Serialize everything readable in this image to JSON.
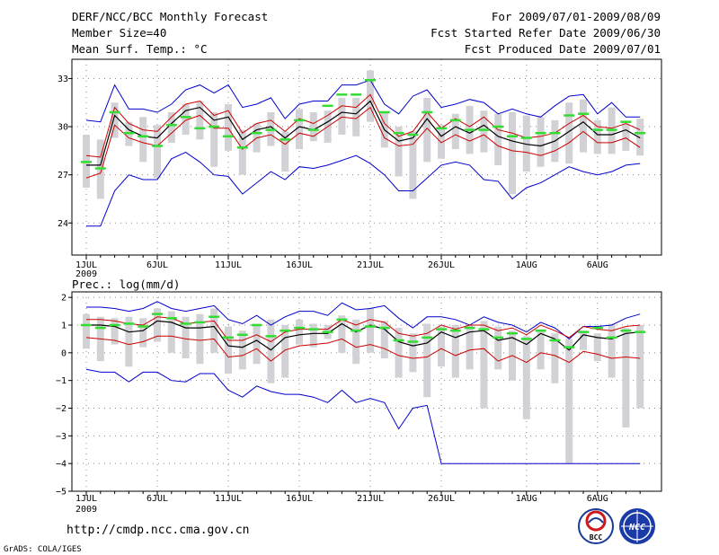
{
  "header": {
    "left": [
      "DERF/NCC/BCC Monthly Forecast",
      "Member Size=40",
      "Mean Surf. Temp.: °C"
    ],
    "right": [
      "For 2009/07/01-2009/08/09",
      "Fcst Started Refer Date 2009/06/30",
      "Fcst Produced Date 2009/07/01"
    ]
  },
  "footer": {
    "url": "http://cmdp.ncc.cma.gov.cn",
    "credit": "GrADS: COLA/IGES",
    "logo_bcc_text": "BCC",
    "logo_ncc_text": "NCC"
  },
  "colors": {
    "box": "#d2d2d6",
    "median": "#33dd33",
    "mean": "#000000",
    "inner": "#cc0000",
    "outer": "#0000cc",
    "grid": "#888888"
  },
  "chart_data": [
    {
      "type": "boxplot-ensemble",
      "title": "Mean Surf. Temp.: °C",
      "days": 40,
      "ylim": [
        22,
        34.2
      ],
      "yticks": [
        24,
        27,
        30,
        33
      ],
      "ytick_labels": [
        "24",
        "27",
        "30",
        "33"
      ],
      "xtick_days": [
        1,
        6,
        11,
        16,
        21,
        26,
        32,
        37
      ],
      "xtick_labels": [
        "1JUL",
        "6JUL",
        "11JUL",
        "16JUL",
        "21JUL",
        "26JUL",
        "1AUG",
        "6AUG"
      ],
      "year_label": "2009",
      "mean": [
        27.6,
        27.6,
        30.7,
        29.8,
        29.4,
        29.3,
        30.2,
        31.0,
        31.2,
        30.4,
        30.6,
        29.2,
        29.8,
        30.0,
        29.3,
        30.0,
        29.8,
        30.3,
        30.9,
        30.8,
        31.6,
        29.8,
        29.1,
        29.3,
        30.5,
        29.4,
        30.0,
        29.6,
        30.1,
        29.4,
        29.1,
        28.9,
        28.8,
        29.1,
        29.7,
        30.3,
        29.5,
        29.5,
        29.8,
        29.3
      ],
      "q_low": [
        26.8,
        27.1,
        30.1,
        29.3,
        29.0,
        28.8,
        29.6,
        30.4,
        30.7,
        29.9,
        29.9,
        28.6,
        29.3,
        29.5,
        28.9,
        29.6,
        29.4,
        30.0,
        30.6,
        30.5,
        31.2,
        29.3,
        28.8,
        28.9,
        29.9,
        29.0,
        29.5,
        29.1,
        29.5,
        28.8,
        28.5,
        28.4,
        28.2,
        28.5,
        29.0,
        29.7,
        29.0,
        29.0,
        29.3,
        28.7
      ],
      "q_high": [
        28.2,
        28.1,
        31.2,
        30.2,
        29.8,
        29.7,
        30.6,
        31.4,
        31.6,
        30.7,
        31.0,
        29.6,
        30.2,
        30.4,
        29.7,
        30.5,
        30.2,
        30.7,
        31.3,
        31.2,
        32.0,
        30.2,
        29.4,
        29.7,
        30.9,
        29.9,
        30.5,
        30.0,
        30.6,
        29.8,
        29.6,
        29.3,
        29.4,
        29.6,
        30.2,
        30.7,
        30.0,
        29.9,
        30.2,
        29.8
      ],
      "min": [
        23.8,
        23.8,
        26.0,
        27.0,
        26.7,
        26.7,
        28.0,
        28.4,
        27.8,
        27.0,
        26.9,
        25.8,
        26.5,
        27.2,
        26.7,
        27.5,
        27.4,
        27.6,
        27.9,
        28.2,
        27.7,
        27.0,
        26.0,
        26.0,
        26.8,
        27.6,
        27.8,
        27.6,
        26.7,
        26.6,
        25.5,
        26.2,
        26.5,
        27.0,
        27.5,
        27.2,
        27.0,
        27.2,
        27.6,
        27.7
      ],
      "max": [
        30.4,
        30.3,
        32.6,
        31.1,
        31.1,
        30.9,
        31.4,
        32.3,
        32.6,
        32.1,
        32.6,
        31.2,
        31.4,
        31.8,
        30.5,
        31.4,
        31.6,
        31.6,
        32.6,
        32.6,
        32.9,
        31.4,
        30.8,
        31.9,
        32.3,
        31.2,
        31.4,
        31.7,
        31.5,
        30.8,
        31.1,
        30.8,
        30.6,
        31.3,
        31.9,
        32.0,
        30.8,
        31.5,
        30.6,
        30.6
      ],
      "box_low": [
        26.2,
        25.5,
        29.3,
        28.8,
        27.8,
        26.8,
        29.0,
        29.5,
        29.2,
        27.5,
        28.5,
        27.0,
        28.4,
        28.8,
        27.2,
        28.6,
        29.1,
        29.0,
        29.5,
        29.4,
        30.3,
        28.7,
        26.9,
        25.5,
        27.8,
        28.0,
        28.6,
        28.3,
        28.4,
        27.6,
        25.8,
        27.2,
        27.5,
        27.8,
        27.7,
        28.4,
        28.3,
        28.3,
        28.5,
        28.2
      ],
      "box_high": [
        29.5,
        29.2,
        31.5,
        30.3,
        30.6,
        30.1,
        30.9,
        31.4,
        31.6,
        30.9,
        31.4,
        29.8,
        30.2,
        30.9,
        29.7,
        31.1,
        30.9,
        31.0,
        31.8,
        31.8,
        33.5,
        30.9,
        30.0,
        29.7,
        31.8,
        30.1,
        30.8,
        31.3,
        31.0,
        30.8,
        30.9,
        30.7,
        30.6,
        30.4,
        31.5,
        31.7,
        30.4,
        31.2,
        30.2,
        30.5
      ],
      "median": [
        27.8,
        27.4,
        30.9,
        29.6,
        29.4,
        28.8,
        30.1,
        30.6,
        29.9,
        30.0,
        29.4,
        28.7,
        29.6,
        29.8,
        29.2,
        30.4,
        29.8,
        31.3,
        32.0,
        32.0,
        32.9,
        30.9,
        29.6,
        29.5,
        30.9,
        29.9,
        30.4,
        29.8,
        29.8,
        30.0,
        29.4,
        29.3,
        29.6,
        29.6,
        30.7,
        30.8,
        29.8,
        29.8,
        30.3,
        29.6
      ]
    },
    {
      "type": "boxplot-ensemble",
      "title": "Prec.: log(mm/d)",
      "days": 40,
      "ylim": [
        -5,
        2.2
      ],
      "yticks": [
        -5,
        -4,
        -3,
        -2,
        -1,
        0,
        1,
        2
      ],
      "ytick_labels": [
        "−5",
        "−4",
        "−3",
        "−2",
        "−1",
        "0",
        "1",
        "2"
      ],
      "xtick_days": [
        1,
        6,
        11,
        16,
        21,
        26,
        32,
        37
      ],
      "xtick_labels": [
        "1JUL",
        "6JUL",
        "11JUL",
        "16JUL",
        "21JUL",
        "26JUL",
        "1AUG",
        "6AUG"
      ],
      "year_label": "2009",
      "mean": [
        1.0,
        1.0,
        0.95,
        0.75,
        0.8,
        1.15,
        1.1,
        0.9,
        0.9,
        0.95,
        0.25,
        0.2,
        0.45,
        0.1,
        0.55,
        0.65,
        0.7,
        0.7,
        1.05,
        0.75,
        1.0,
        0.85,
        0.4,
        0.25,
        0.35,
        0.75,
        0.55,
        0.75,
        0.8,
        0.45,
        0.55,
        0.3,
        0.7,
        0.5,
        0.1,
        0.65,
        0.55,
        0.5,
        0.7,
        0.75
      ],
      "q_low": [
        0.55,
        0.5,
        0.45,
        0.3,
        0.4,
        0.6,
        0.6,
        0.5,
        0.45,
        0.5,
        -0.15,
        -0.1,
        0.15,
        -0.3,
        0.1,
        0.25,
        0.3,
        0.35,
        0.5,
        0.2,
        0.3,
        0.15,
        -0.1,
        -0.2,
        -0.15,
        0.15,
        -0.1,
        0.1,
        0.15,
        -0.3,
        -0.1,
        -0.35,
        0.0,
        -0.1,
        -0.35,
        0.05,
        -0.05,
        -0.2,
        -0.15,
        -0.2
      ],
      "q_high": [
        1.2,
        1.2,
        1.15,
        1.05,
        1.0,
        1.3,
        1.25,
        1.05,
        1.1,
        1.15,
        0.45,
        0.45,
        0.65,
        0.4,
        0.75,
        0.85,
        0.85,
        0.85,
        1.2,
        1.0,
        1.2,
        1.1,
        0.7,
        0.6,
        0.7,
        1.0,
        0.85,
        1.0,
        1.0,
        0.8,
        0.9,
        0.65,
        1.0,
        0.8,
        0.55,
        0.95,
        0.85,
        0.8,
        0.95,
        1.0
      ],
      "min": [
        -0.6,
        -0.7,
        -0.7,
        -1.05,
        -0.7,
        -0.7,
        -1.0,
        -1.05,
        -0.75,
        -0.75,
        -1.35,
        -1.6,
        -1.2,
        -1.4,
        -1.5,
        -1.5,
        -1.6,
        -1.8,
        -1.35,
        -1.8,
        -1.65,
        -1.8,
        -2.75,
        -2.0,
        -1.9,
        -4.0,
        -4.0,
        -4.0,
        -4.0,
        -4.0,
        -4.0,
        -4.0,
        -4.0,
        -4.0,
        -4.0,
        -4.0,
        -4.0,
        -4.0,
        -4.0,
        -4.0
      ],
      "max": [
        1.65,
        1.65,
        1.6,
        1.5,
        1.6,
        1.85,
        1.6,
        1.5,
        1.6,
        1.7,
        1.2,
        1.05,
        1.35,
        1.0,
        1.3,
        1.5,
        1.5,
        1.35,
        1.8,
        1.55,
        1.6,
        1.7,
        1.25,
        0.9,
        1.3,
        1.3,
        1.2,
        1.0,
        1.3,
        1.1,
        1.0,
        0.75,
        1.1,
        0.9,
        0.5,
        0.95,
        0.95,
        1.0,
        1.25,
        1.4
      ],
      "box_low": [
        0.15,
        -0.3,
        0.3,
        -0.5,
        0.2,
        0.4,
        0.0,
        -0.2,
        -0.4,
        0.0,
        -0.75,
        -0.6,
        -0.4,
        -1.1,
        -0.9,
        0.3,
        0.2,
        0.5,
        0.0,
        -0.4,
        0.0,
        -0.2,
        -0.9,
        -0.7,
        -1.6,
        -0.5,
        -0.9,
        -0.6,
        -2.0,
        -0.6,
        -1.0,
        -2.4,
        -0.6,
        -1.1,
        -4.0,
        0.1,
        -0.3,
        -0.9,
        -2.7,
        -2.0
      ],
      "box_high": [
        1.4,
        1.3,
        1.25,
        1.3,
        1.25,
        1.6,
        1.5,
        1.3,
        1.4,
        1.6,
        0.95,
        0.8,
        1.05,
        1.2,
        1.0,
        1.2,
        1.05,
        1.0,
        1.35,
        1.2,
        1.6,
        1.15,
        0.9,
        0.7,
        1.05,
        0.95,
        1.0,
        1.0,
        1.15,
        0.95,
        0.8,
        0.6,
        0.8,
        0.7,
        0.5,
        0.8,
        0.7,
        1.05,
        0.9,
        1.0
      ],
      "median": [
        1.0,
        0.9,
        1.0,
        1.05,
        0.95,
        1.4,
        1.25,
        1.05,
        1.1,
        1.3,
        0.55,
        0.65,
        1.0,
        0.6,
        0.8,
        0.9,
        0.85,
        0.75,
        1.2,
        0.8,
        0.95,
        0.9,
        0.45,
        0.4,
        0.55,
        0.85,
        0.8,
        0.9,
        0.85,
        0.55,
        0.7,
        0.5,
        0.8,
        0.45,
        0.2,
        0.75,
        0.9,
        0.55,
        0.8,
        0.75
      ]
    }
  ]
}
